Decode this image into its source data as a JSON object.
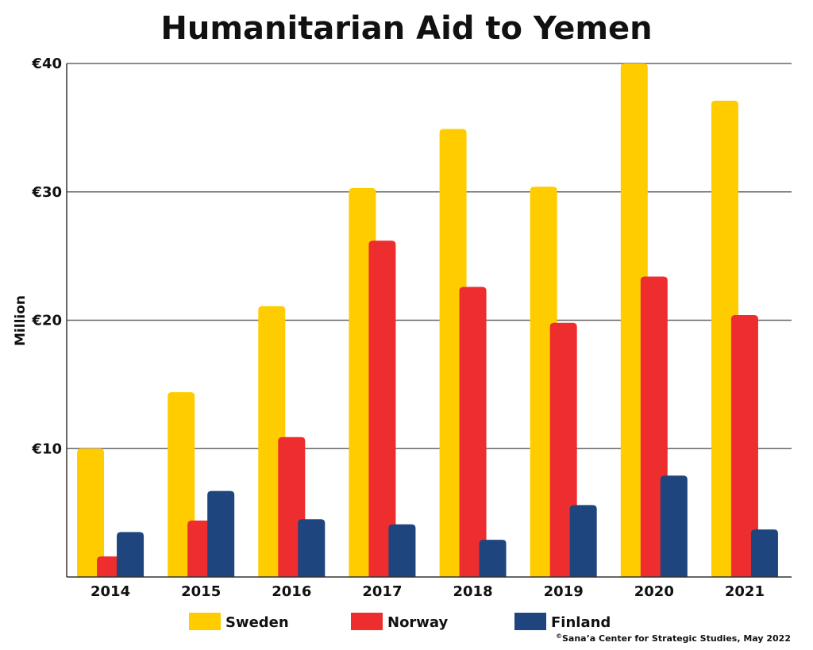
{
  "chart_data": {
    "type": "bar",
    "title": "Humanitarian Aid to Yemen",
    "ylabel": "Million",
    "xlabel": "",
    "ylim": [
      0,
      40
    ],
    "yticks": [
      10,
      20,
      30,
      40
    ],
    "ytick_labels": [
      "€10",
      "€20",
      "€30",
      "€40"
    ],
    "grid": true,
    "legend_position": "bottom",
    "categories": [
      "2014",
      "2015",
      "2016",
      "2017",
      "2018",
      "2019",
      "2020",
      "2021"
    ],
    "series": [
      {
        "name": "Sweden",
        "color": "#FFCC00",
        "values": [
          10.0,
          14.4,
          21.1,
          30.3,
          34.9,
          30.4,
          40.0,
          37.1
        ]
      },
      {
        "name": "Norway",
        "color": "#EE2D2F",
        "values": [
          1.6,
          4.4,
          10.9,
          26.2,
          22.6,
          19.8,
          23.4,
          20.4
        ]
      },
      {
        "name": "Finland",
        "color": "#1E457D",
        "values": [
          3.5,
          6.7,
          4.5,
          4.1,
          2.9,
          5.6,
          7.9,
          3.7
        ]
      }
    ]
  },
  "credit": {
    "symbol": "©",
    "text": "Sana’a Center for Strategic Studies, May 2022"
  }
}
